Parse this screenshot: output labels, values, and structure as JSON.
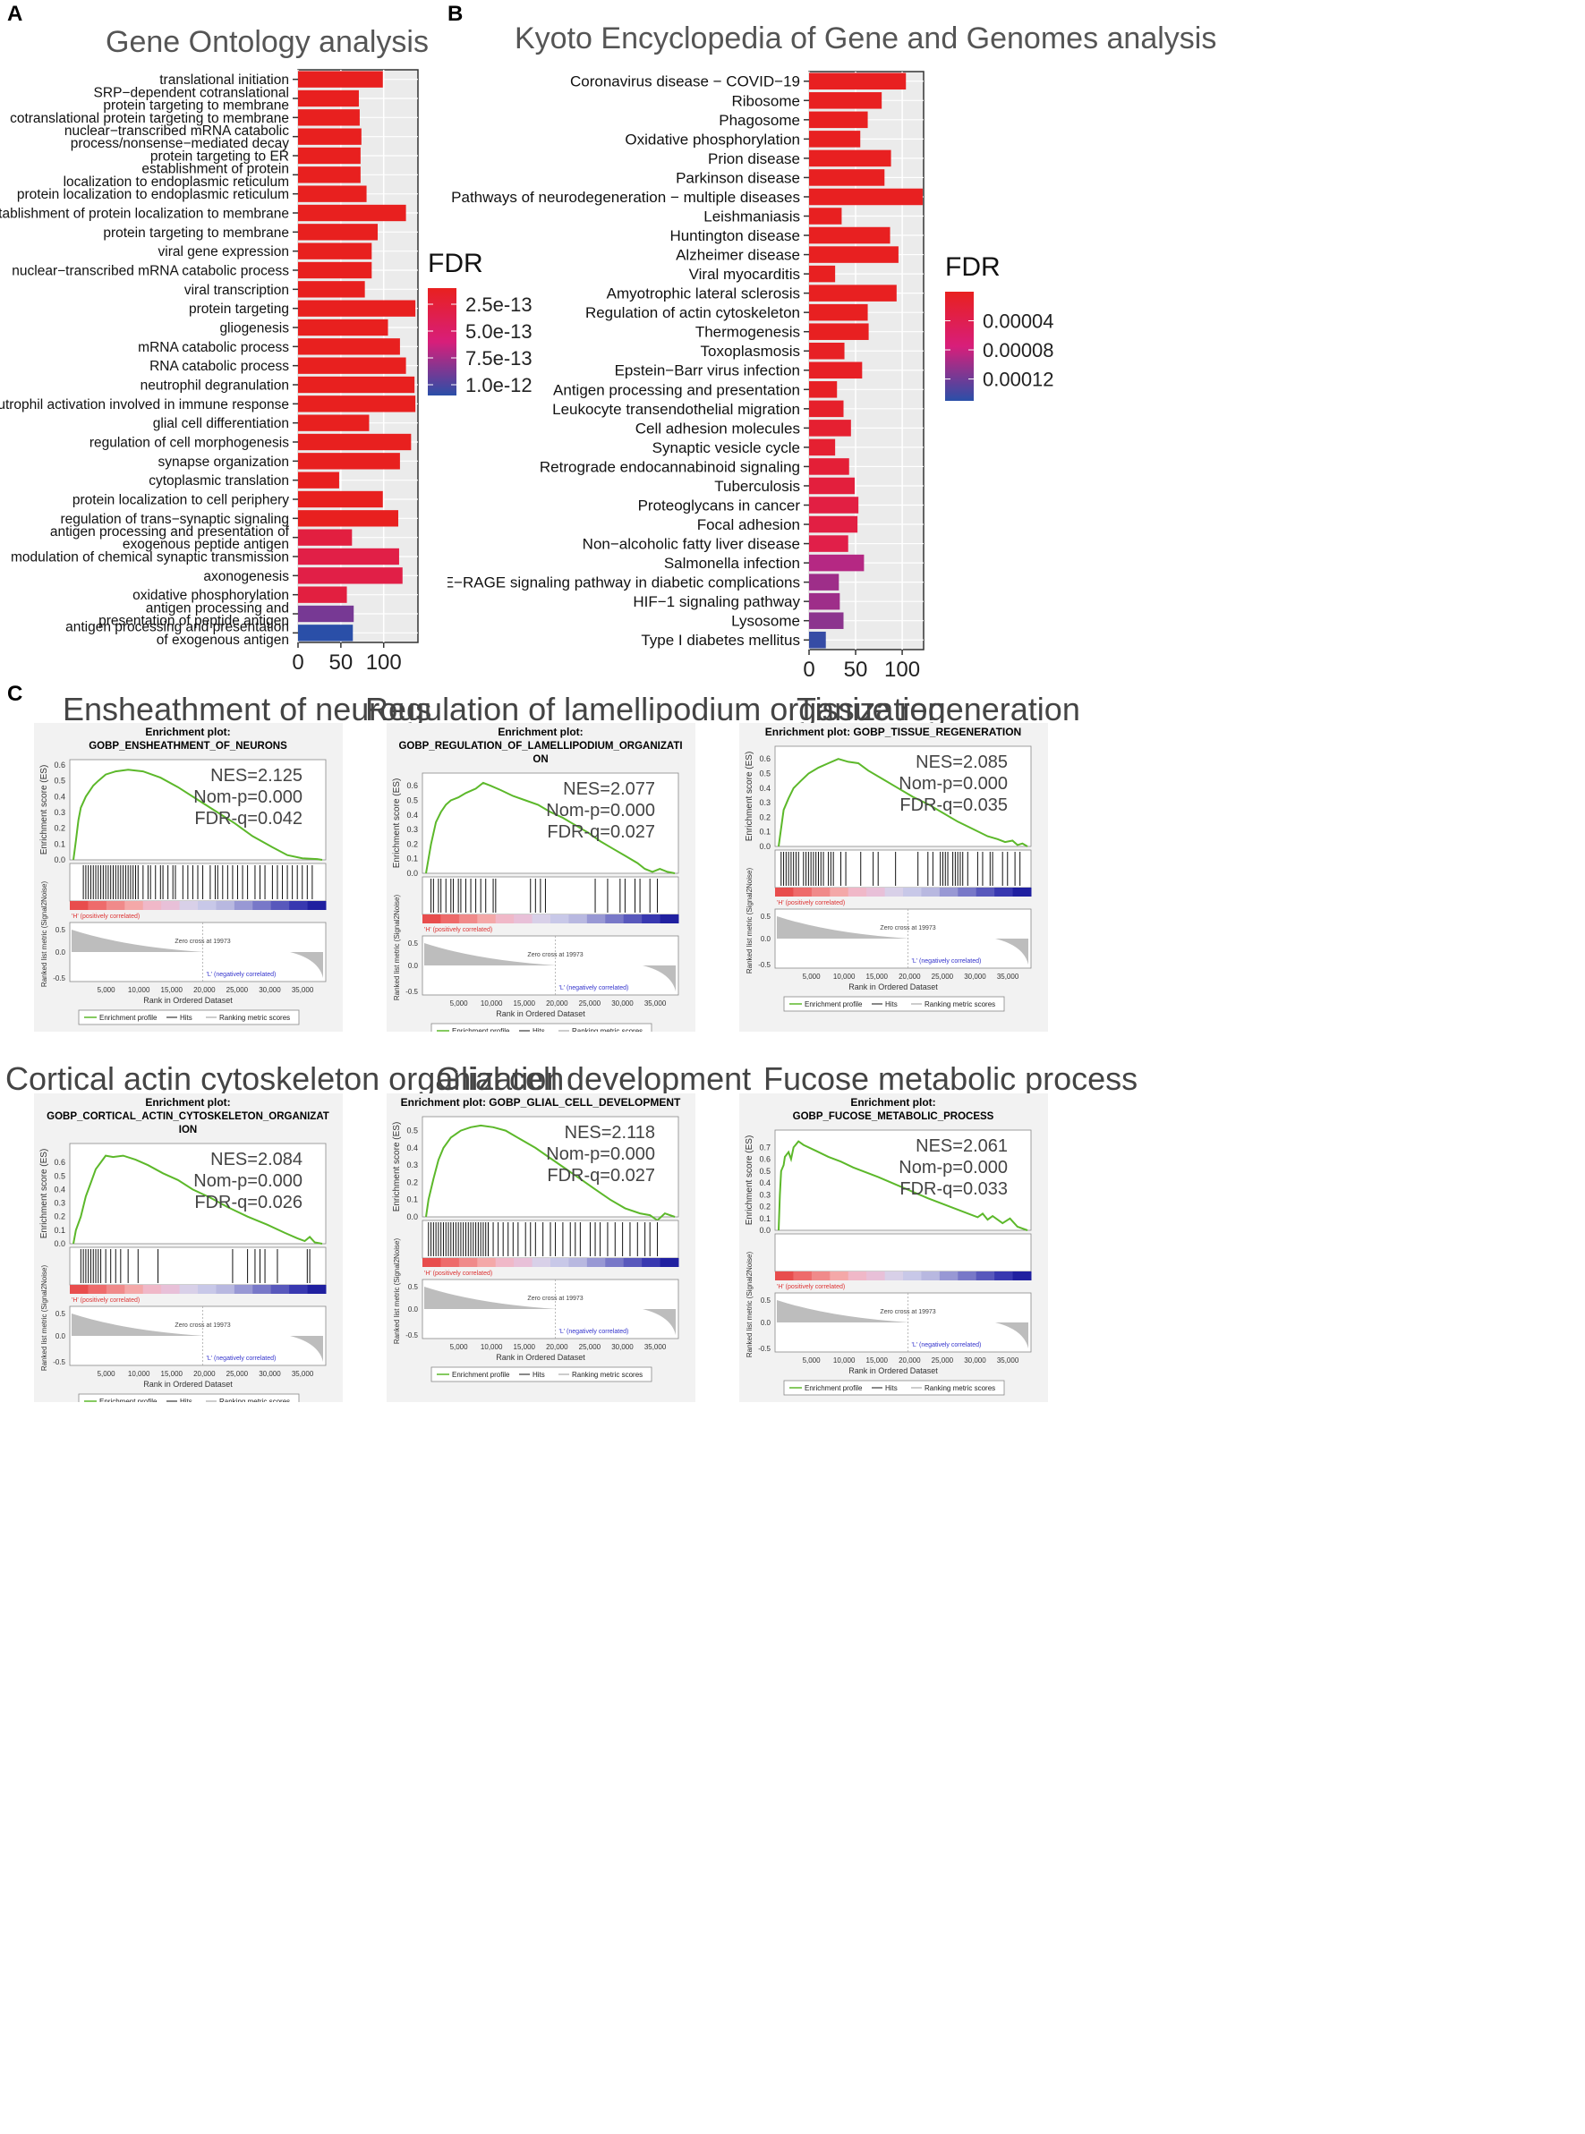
{
  "panels": {
    "a": "A",
    "b": "B",
    "c": "C"
  },
  "chart_data": [
    {
      "id": "go",
      "type": "bar",
      "orientation": "horizontal",
      "title": "Gene Ontology analysis",
      "xlim": [
        0,
        140
      ],
      "xticks": [
        0,
        50,
        100
      ],
      "xticklabels": [
        "0",
        "50",
        "100"
      ],
      "legend": {
        "title": "FDR",
        "range": [
          1e-13,
          1.1e-12
        ],
        "ticks": [
          2.5e-13,
          5e-13,
          7.5e-13,
          1e-12
        ],
        "ticklabels": [
          "2.5e-13",
          "5.0e-13",
          "7.5e-13",
          "1.0e-12"
        ],
        "low_color": "#e8201f",
        "high_color": "#2a4fa8"
      },
      "categories": [
        "translational initiation",
        "SRP−dependent cotranslational\nprotein targeting to membrane",
        "cotranslational protein targeting to membrane",
        "nuclear−transcribed mRNA catabolic\nprocess/nonsense−mediated decay",
        "protein targeting to ER",
        "establishment of protein\nlocalization to endoplasmic reticulum",
        "protein localization to endoplasmic reticulum",
        "establishment of protein localization to membrane",
        "protein targeting to membrane",
        "viral gene expression",
        "nuclear−transcribed mRNA catabolic process",
        "viral transcription",
        "protein targeting",
        "gliogenesis",
        "mRNA catabolic process",
        "RNA catabolic process",
        "neutrophil degranulation",
        "neutrophil activation involved in immune response",
        "glial cell differentiation",
        "regulation of cell morphogenesis",
        "synapse organization",
        "cytoplasmic translation",
        "protein localization to cell periphery",
        "regulation of trans−synaptic signaling",
        "antigen processing and presentation of\nexogenous peptide antigen",
        "modulation of chemical synaptic transmission",
        "axonogenesis",
        "oxidative phosphorylation",
        "antigen processing and\npresentation of peptide antigen",
        "antigen processing and presentation\nof exogenous antigen"
      ],
      "values": [
        99,
        71,
        72,
        74,
        73,
        73,
        80,
        126,
        93,
        86,
        86,
        78,
        137,
        105,
        119,
        126,
        136,
        137,
        83,
        132,
        119,
        48,
        99,
        117,
        63,
        118,
        122,
        57,
        65,
        64
      ],
      "fdr": [
        1e-13,
        1e-13,
        1e-13,
        1e-13,
        1e-13,
        1e-13,
        1e-13,
        1e-13,
        1e-13,
        1e-13,
        1e-13,
        1e-13,
        1e-13,
        1e-13,
        1e-13,
        1e-13,
        1e-13,
        1e-13,
        1e-13,
        1e-13,
        1e-13,
        1e-13,
        1e-13,
        1e-13,
        2.8e-13,
        3.2e-13,
        3.2e-13,
        2.8e-13,
        8.8e-13,
        1.1e-12
      ]
    },
    {
      "id": "kegg",
      "type": "bar",
      "orientation": "horizontal",
      "title": "Kyoto Encyclopedia of Gene and Genomes analysis",
      "xlim": [
        0,
        123
      ],
      "xticks": [
        0,
        50,
        100
      ],
      "xticklabels": [
        "0",
        "50",
        "100"
      ],
      "legend": {
        "title": "FDR",
        "range": [
          1e-07,
          0.00015
        ],
        "ticks": [
          4e-05,
          8e-05,
          0.00012
        ],
        "ticklabels": [
          "0.00004",
          "0.00008",
          "0.00012"
        ],
        "low_color": "#e8201f",
        "high_color": "#2a4fa8"
      },
      "categories": [
        "Coronavirus disease − COVID−19",
        "Ribosome",
        "Phagosome",
        "Oxidative phosphorylation",
        "Prion disease",
        "Parkinson disease",
        "Pathways of neurodegeneration − multiple diseases",
        "Leishmaniasis",
        "Huntington disease",
        "Alzheimer disease",
        "Viral myocarditis",
        "Amyotrophic lateral sclerosis",
        "Regulation of actin cytoskeleton",
        "Thermogenesis",
        "Toxoplasmosis",
        "Epstein−Barr virus infection",
        "Antigen processing and presentation",
        "Leukocyte transendothelial migration",
        "Cell adhesion molecules",
        "Synaptic vesicle cycle",
        "Retrograde endocannabinoid signaling",
        "Tuberculosis",
        "Proteoglycans in cancer",
        "Focal adhesion",
        "Non−alcoholic fatty liver disease",
        "Salmonella infection",
        "AGE−RAGE signaling pathway in diabetic complications",
        "HIF−1 signaling pathway",
        "Lysosome",
        "Type I diabetes mellitus"
      ],
      "values": [
        104,
        78,
        63,
        55,
        88,
        81,
        122,
        35,
        87,
        96,
        28,
        94,
        63,
        64,
        38,
        57,
        30,
        37,
        45,
        28,
        43,
        49,
        53,
        52,
        42,
        59,
        32,
        33,
        37,
        18
      ],
      "fdr": [
        2e-06,
        2e-06,
        2e-06,
        2e-06,
        2e-06,
        2e-06,
        2e-06,
        2e-06,
        2e-06,
        2e-06,
        2e-06,
        2e-06,
        2e-06,
        2e-06,
        5e-06,
        5e-06,
        5e-06,
        1e-05,
        1.5e-05,
        1.5e-05,
        2e-05,
        2.5e-05,
        3e-05,
        3e-05,
        3.5e-05,
        9e-05,
        0.0001,
        0.0001,
        0.000108,
        0.000145
      ]
    }
  ],
  "gsea": {
    "legend_profile": "Enrichment profile",
    "legend_hits": "Hits",
    "legend_metric": "Ranking metric scores",
    "ylabel_es": "Enrichment score (ES)",
    "ylabel_metric": "Ranked list metric (Signal2Noise)",
    "xlabel": "Rank in Ordered Dataset",
    "pos_label": "'H' (positively correlated)",
    "neg_label": "'L' (negatively correlated)",
    "zero_cross": "Zero cross at 19973",
    "metric_ticks": [
      "0.5",
      "0.0",
      "-0.5"
    ],
    "rank_ticks": [
      "5,000",
      "10,000",
      "15,000",
      "20,000",
      "25,000",
      "30,000",
      "35,000"
    ],
    "plots": [
      {
        "title": "Ensheathment of neurous",
        "plot_title": "Enrichment plot:",
        "plot_title2": "GOBP_ENSHEATHMENT_OF_NEURONS",
        "nes": "NES=2.125",
        "nomp": "Nom-p=0.000",
        "fdrq": "FDR-q=0.042",
        "es_ticks": [
          "0.6",
          "0.5",
          "0.4",
          "0.3",
          "0.2",
          "0.1",
          "0.0"
        ],
        "es_max": 0.6,
        "es_x": [
          0,
          1,
          2,
          3,
          5,
          8,
          10,
          13,
          17,
          22,
          28,
          35,
          42,
          50,
          58,
          65,
          72,
          80,
          86,
          92,
          98,
          100
        ],
        "es_y": [
          0,
          0.12,
          0.25,
          0.33,
          0.4,
          0.47,
          0.5,
          0.54,
          0.56,
          0.57,
          0.56,
          0.52,
          0.46,
          0.38,
          0.3,
          0.23,
          0.15,
          0.08,
          0.03,
          0.01,
          0.005,
          0.0
        ],
        "hits": [
          4,
          5,
          6,
          7,
          8,
          9,
          10,
          11,
          12,
          13,
          14,
          15,
          16,
          17,
          18,
          19,
          20,
          21,
          22,
          23,
          24,
          25,
          26,
          28,
          30,
          31,
          33,
          35,
          36,
          38,
          40,
          41,
          44,
          46,
          48,
          50,
          52,
          55,
          57,
          58,
          60,
          62,
          64,
          66,
          68,
          70,
          73,
          75,
          77,
          80,
          82,
          84,
          86,
          88,
          90,
          92,
          94,
          96
        ]
      },
      {
        "title": "Regulation of lamellipodium organization",
        "plot_title": "Enrichment plot:",
        "plot_title2": "GOBP_REGULATION_OF_LAMELLIPODIUM_ORGANIZATI",
        "plot_title3": "ON",
        "nes": "NES=2.077",
        "nomp": "Nom-p=0.000",
        "fdrq": "FDR-q=0.027",
        "es_ticks": [
          "0.6",
          "0.5",
          "0.4",
          "0.3",
          "0.2",
          "0.1",
          "0.0"
        ],
        "es_max": 0.65,
        "es_x": [
          0,
          2,
          4,
          6,
          8,
          10,
          13,
          16,
          20,
          23,
          26,
          30,
          35,
          40,
          45,
          50,
          55,
          60,
          65,
          70,
          75,
          80,
          85,
          88,
          91,
          94,
          97,
          100
        ],
        "es_y": [
          0,
          0.2,
          0.35,
          0.42,
          0.47,
          0.5,
          0.52,
          0.55,
          0.58,
          0.62,
          0.6,
          0.57,
          0.53,
          0.5,
          0.47,
          0.42,
          0.38,
          0.33,
          0.28,
          0.22,
          0.17,
          0.12,
          0.07,
          0.03,
          0.01,
          0.03,
          0.01,
          0.0
        ],
        "hits": [
          2,
          3,
          5,
          6,
          8,
          10,
          11,
          13,
          14,
          16,
          18,
          20,
          22,
          24,
          27,
          28,
          42,
          44,
          46,
          48,
          68,
          73,
          78,
          80,
          84,
          86,
          90,
          93
        ]
      },
      {
        "title": "Tissue regeneration",
        "plot_title": "Enrichment plot: GOBP_TISSUE_REGENERATION",
        "plot_title2": "",
        "nes": "NES=2.085",
        "nomp": "Nom-p=0.000",
        "fdrq": "FDR-q=0.035",
        "es_ticks": [
          "0.6",
          "0.5",
          "0.4",
          "0.3",
          "0.2",
          "0.1",
          "0.0"
        ],
        "es_max": 0.65,
        "es_x": [
          0,
          2,
          4,
          6,
          9,
          12,
          16,
          20,
          24,
          28,
          32,
          36,
          42,
          48,
          54,
          60,
          66,
          72,
          78,
          84,
          88,
          91,
          94,
          96,
          98,
          100
        ],
        "es_y": [
          0,
          0.25,
          0.33,
          0.4,
          0.45,
          0.5,
          0.54,
          0.57,
          0.6,
          0.58,
          0.57,
          0.52,
          0.46,
          0.4,
          0.34,
          0.29,
          0.23,
          0.17,
          0.12,
          0.07,
          0.05,
          0.03,
          0.04,
          0.01,
          0.02,
          0.0
        ],
        "hits": [
          1,
          2,
          3,
          4,
          5,
          6,
          7,
          8,
          10,
          11,
          12,
          13,
          14,
          15,
          16,
          17,
          18,
          20,
          21,
          22,
          25,
          27,
          33,
          38,
          40,
          47,
          56,
          60,
          62,
          65,
          66,
          67,
          68,
          70,
          71,
          72,
          73,
          74,
          76,
          80,
          82,
          85,
          86,
          90,
          92,
          95,
          97
        ]
      },
      {
        "title": "Cortical actin cytoskeleton organization",
        "plot_title": "Enrichment plot:",
        "plot_title2": "GOBP_CORTICAL_ACTIN_CYTOSKELETON_ORGANIZAT",
        "plot_title3": "ION",
        "nes": "NES=2.084",
        "nomp": "Nom-p=0.000",
        "fdrq": "FDR-q=0.026",
        "es_ticks": [
          "0.6",
          "0.5",
          "0.4",
          "0.3",
          "0.2",
          "0.1",
          "0.0"
        ],
        "es_max": 0.7,
        "es_x": [
          0,
          1,
          3,
          5,
          7,
          9,
          11,
          13,
          16,
          20,
          25,
          30,
          36,
          42,
          48,
          55,
          62,
          70,
          78,
          85,
          90,
          93,
          95,
          97,
          100
        ],
        "es_y": [
          0,
          0.1,
          0.2,
          0.35,
          0.45,
          0.55,
          0.6,
          0.65,
          0.64,
          0.65,
          0.62,
          0.58,
          0.52,
          0.47,
          0.4,
          0.34,
          0.27,
          0.2,
          0.14,
          0.08,
          0.04,
          0.02,
          0.05,
          0.01,
          0.0
        ],
        "hits": [
          3,
          4,
          5,
          6,
          7,
          8,
          9,
          10,
          11,
          13,
          15,
          17,
          19,
          22,
          26,
          34,
          64,
          70,
          73,
          75,
          77,
          82,
          94,
          95
        ]
      },
      {
        "title": "Glial cell development",
        "plot_title": "Enrichment plot: GOBP_GLIAL_CELL_DEVELOPMENT",
        "plot_title2": "",
        "nes": "NES=2.118",
        "nomp": "Nom-p=0.000",
        "fdrq": "FDR-q=0.027",
        "es_ticks": [
          "0.5",
          "0.4",
          "0.3",
          "0.2",
          "0.1",
          "0.0"
        ],
        "es_max": 0.55,
        "es_x": [
          0,
          1,
          3,
          5,
          7,
          10,
          14,
          18,
          22,
          27,
          32,
          38,
          44,
          50,
          56,
          62,
          68,
          74,
          80,
          86,
          90,
          93,
          96,
          100
        ],
        "es_y": [
          0,
          0.1,
          0.22,
          0.33,
          0.4,
          0.46,
          0.5,
          0.52,
          0.53,
          0.52,
          0.5,
          0.45,
          0.4,
          0.34,
          0.28,
          0.22,
          0.16,
          0.1,
          0.05,
          0.02,
          0.01,
          -0.02,
          0.02,
          0.0
        ],
        "hits": [
          1,
          2,
          3,
          4,
          5,
          6,
          7,
          8,
          9,
          10,
          11,
          12,
          13,
          14,
          15,
          16,
          17,
          18,
          19,
          20,
          21,
          22,
          23,
          24,
          25,
          27,
          29,
          31,
          33,
          35,
          37,
          40,
          42,
          44,
          47,
          50,
          52,
          55,
          58,
          60,
          62,
          66,
          68,
          70,
          73,
          76,
          79,
          82,
          85,
          88,
          90,
          93
        ]
      },
      {
        "title": "Fucose metabolic process",
        "plot_title": "Enrichment plot:",
        "plot_title2": "GOBP_FUCOSE_METABOLIC_PROCESS",
        "nes": "NES=2.061",
        "nomp": "Nom-p=0.000",
        "fdrq": "FDR-q=0.033",
        "es_ticks": [
          "0.7",
          "0.6",
          "0.5",
          "0.4",
          "0.3",
          "0.2",
          "0.1",
          "0.0"
        ],
        "es_max": 0.8,
        "es_x": [
          0,
          0.5,
          1,
          2,
          2.5,
          4,
          5,
          6,
          8,
          10,
          15,
          20,
          25,
          30,
          40,
          50,
          60,
          70,
          80,
          82,
          84,
          86,
          90,
          93,
          96,
          100
        ],
        "es_y": [
          0,
          0.3,
          0.5,
          0.55,
          0.62,
          0.66,
          0.6,
          0.7,
          0.75,
          0.72,
          0.67,
          0.62,
          0.58,
          0.53,
          0.45,
          0.36,
          0.27,
          0.19,
          0.11,
          0.14,
          0.09,
          0.12,
          0.06,
          0.1,
          0.03,
          0.0
        ]
      }
    ]
  }
}
